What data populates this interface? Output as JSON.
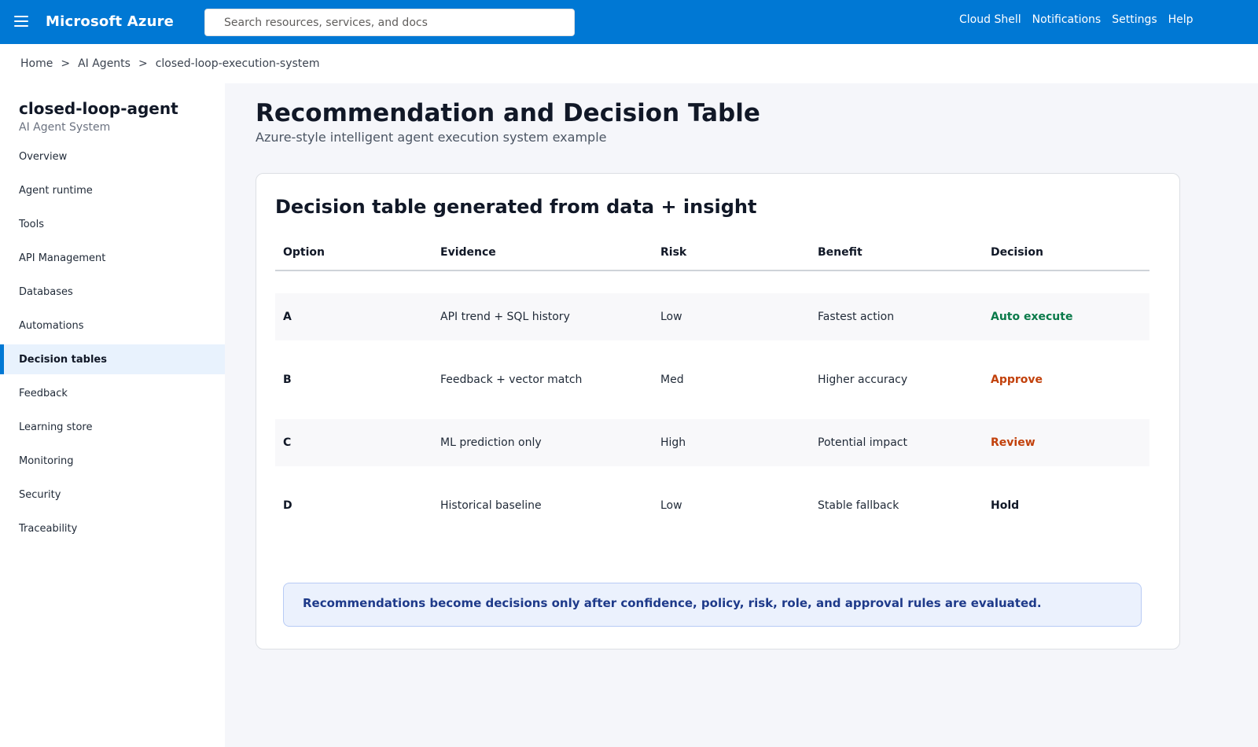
{
  "topbar": {
    "brand": "Microsoft Azure",
    "search_placeholder": "Search resources, services, and docs",
    "links": [
      "Cloud Shell",
      "Notifications",
      "Settings",
      "Help"
    ]
  },
  "breadcrumb": {
    "items": [
      "Home",
      "AI Agents",
      "closed-loop-execution-system"
    ],
    "separator": ">"
  },
  "sidebar": {
    "title": "closed-loop-agent",
    "subtitle": "AI Agent System",
    "items": [
      {
        "label": "Overview"
      },
      {
        "label": "Agent runtime"
      },
      {
        "label": "Tools"
      },
      {
        "label": "API Management"
      },
      {
        "label": "Databases"
      },
      {
        "label": "Automations"
      },
      {
        "label": "Decision tables",
        "active": true
      },
      {
        "label": "Feedback"
      },
      {
        "label": "Learning store"
      },
      {
        "label": "Monitoring"
      },
      {
        "label": "Security"
      },
      {
        "label": "Traceability"
      }
    ]
  },
  "main": {
    "title": "Recommendation and Decision Table",
    "subtitle": "Azure-style intelligent agent execution system example",
    "card": {
      "title": "Decision table generated from data + insight",
      "columns": [
        "Option",
        "Evidence",
        "Risk",
        "Benefit",
        "Decision"
      ],
      "rows": [
        {
          "option": "A",
          "evidence": "API trend + SQL history",
          "risk": "Low",
          "benefit": "Fastest action",
          "decision": "Auto execute",
          "decision_color": "#0b7a4a"
        },
        {
          "option": "B",
          "evidence": "Feedback + vector match",
          "risk": "Med",
          "benefit": "Higher accuracy",
          "decision": "Approve",
          "decision_color": "#c2410c"
        },
        {
          "option": "C",
          "evidence": "ML prediction only",
          "risk": "High",
          "benefit": "Potential impact",
          "decision": "Review",
          "decision_color": "#c2410c"
        },
        {
          "option": "D",
          "evidence": "Historical baseline",
          "risk": "Low",
          "benefit": "Stable fallback",
          "decision": "Hold",
          "decision_color": "#111827"
        }
      ],
      "note": "Recommendations become decisions only after confidence, policy, risk, role, and approval rules are evaluated."
    }
  },
  "colors": {
    "topbar": "#0078d4",
    "active_nav_bg": "#e8f2fd",
    "main_bg": "#f5f6fa",
    "note_bg": "#ebf1fd",
    "note_text": "#1e3a8a"
  }
}
